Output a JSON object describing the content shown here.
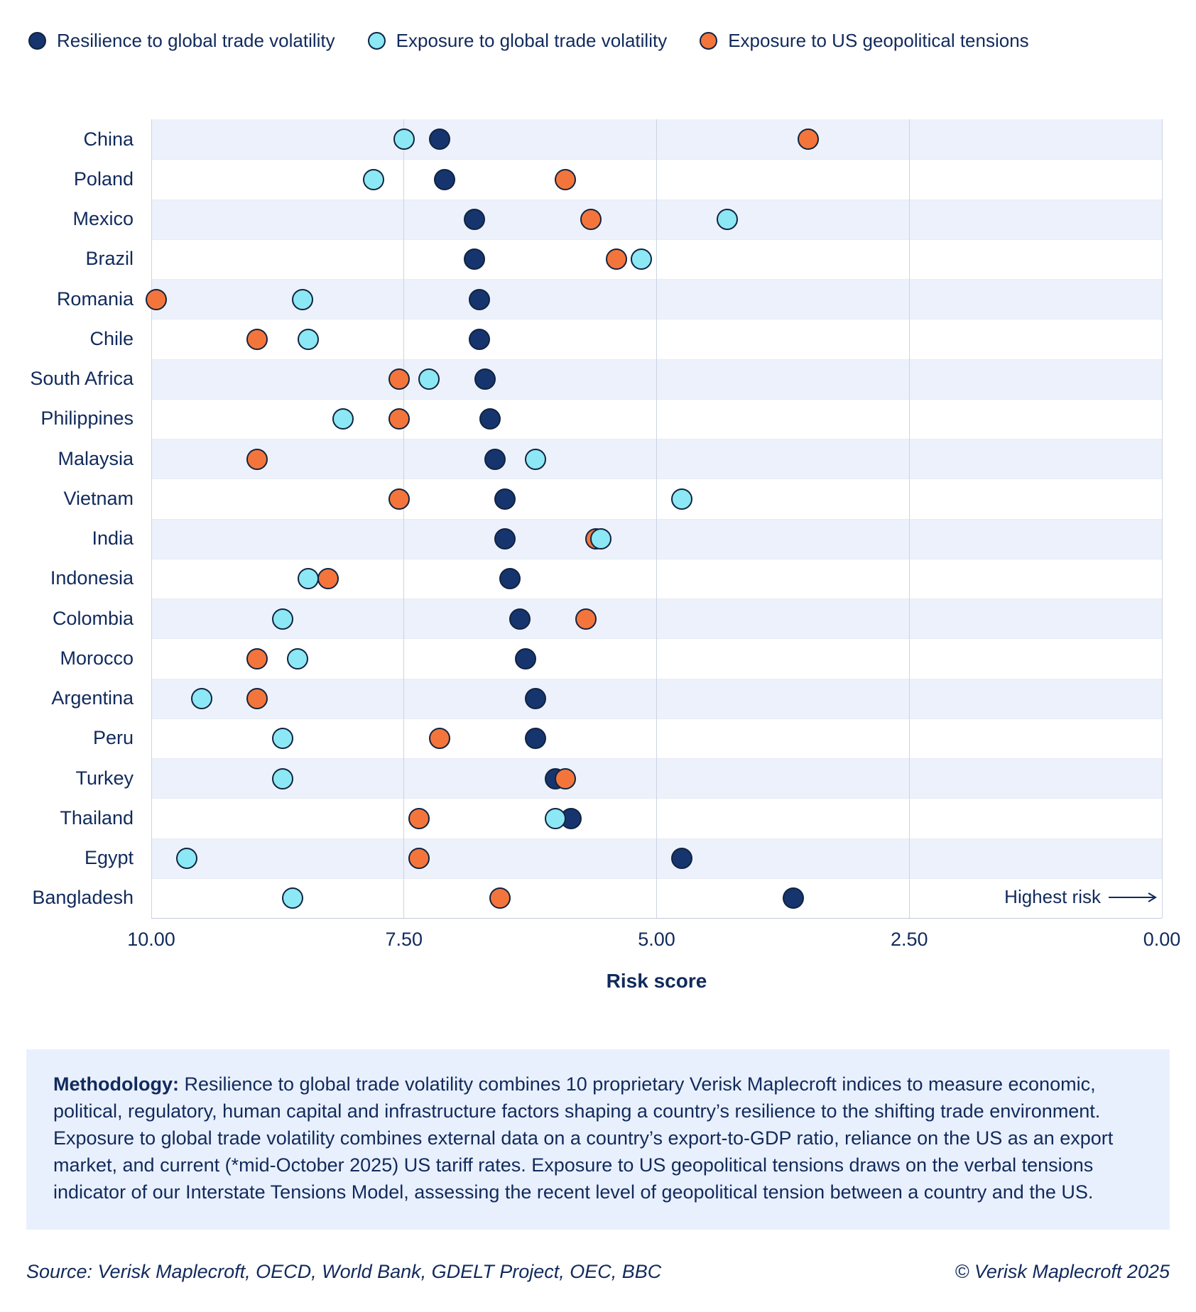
{
  "legend": [
    {
      "key": "resilience",
      "label": "Resilience to global trade volatility",
      "color": "#16356e"
    },
    {
      "key": "exposure_trade",
      "label": "Exposure to global trade volatility",
      "color": "#8ce8f4"
    },
    {
      "key": "exposure_us",
      "label": "Exposure to US geopolitical tensions",
      "color": "#f4753c"
    }
  ],
  "chart_data": {
    "type": "scatter",
    "subtype": "horizontal-dot-plot",
    "title": "",
    "xlabel": "Risk score",
    "x_axis_reversed": true,
    "x_range": [
      10.0,
      0.0
    ],
    "x_ticks": [
      "10.00",
      "7.50",
      "5.00",
      "2.50",
      "0.00"
    ],
    "grid": "vertical-only",
    "legend_position": "top-left",
    "annotation": "Highest risk",
    "series_names": [
      "Resilience to global trade volatility",
      "Exposure to global trade volatility",
      "Exposure to US geopolitical tensions"
    ],
    "rows": [
      {
        "country": "China",
        "resilience": 7.15,
        "exposure_trade": 7.5,
        "exposure_us": 3.5
      },
      {
        "country": "Poland",
        "resilience": 7.1,
        "exposure_trade": 7.8,
        "exposure_us": 5.9
      },
      {
        "country": "Mexico",
        "resilience": 6.8,
        "exposure_trade": 4.3,
        "exposure_us": 5.65
      },
      {
        "country": "Brazil",
        "resilience": 6.8,
        "exposure_trade": 5.15,
        "exposure_us": 5.4
      },
      {
        "country": "Romania",
        "resilience": 6.75,
        "exposure_trade": 8.5,
        "exposure_us": 9.95
      },
      {
        "country": "Chile",
        "resilience": 6.75,
        "exposure_trade": 8.45,
        "exposure_us": 8.95
      },
      {
        "country": "South Africa",
        "resilience": 6.7,
        "exposure_trade": 7.25,
        "exposure_us": 7.55
      },
      {
        "country": "Philippines",
        "resilience": 6.65,
        "exposure_trade": 8.1,
        "exposure_us": 7.55
      },
      {
        "country": "Malaysia",
        "resilience": 6.6,
        "exposure_trade": 6.2,
        "exposure_us": 8.95
      },
      {
        "country": "Vietnam",
        "resilience": 6.5,
        "exposure_trade": 4.75,
        "exposure_us": 7.55
      },
      {
        "country": "India",
        "resilience": 6.5,
        "exposure_trade": 5.55,
        "exposure_us": 5.6
      },
      {
        "country": "Indonesia",
        "resilience": 6.45,
        "exposure_trade": 8.45,
        "exposure_us": 8.25
      },
      {
        "country": "Colombia",
        "resilience": 6.35,
        "exposure_trade": 8.7,
        "exposure_us": 5.7
      },
      {
        "country": "Morocco",
        "resilience": 6.3,
        "exposure_trade": 8.55,
        "exposure_us": 8.95
      },
      {
        "country": "Argentina",
        "resilience": 6.2,
        "exposure_trade": 9.5,
        "exposure_us": 8.95
      },
      {
        "country": "Peru",
        "resilience": 6.2,
        "exposure_trade": 8.7,
        "exposure_us": 7.15
      },
      {
        "country": "Turkey",
        "resilience": 6.0,
        "exposure_trade": 8.7,
        "exposure_us": 5.9
      },
      {
        "country": "Thailand",
        "resilience": 5.85,
        "exposure_trade": 6.0,
        "exposure_us": 7.35
      },
      {
        "country": "Egypt",
        "resilience": 4.75,
        "exposure_trade": 9.65,
        "exposure_us": 7.35
      },
      {
        "country": "Bangladesh",
        "resilience": 3.65,
        "exposure_trade": 8.6,
        "exposure_us": 6.55
      }
    ]
  },
  "methodology": {
    "label": "Methodology:",
    "text": " Resilience to global trade volatility combines 10 proprietary Verisk Maplecroft indices to measure economic, political, regulatory, human capital and infrastructure factors shaping a country’s resilience to the shifting trade environment. Exposure to global trade volatility combines external data on a country’s export-to-GDP ratio, reliance on the US as an export market, and current (*mid-October 2025) US tariff rates. Exposure to US geopolitical tensions draws on the verbal tensions indicator of our Interstate Tensions Model, assessing the recent level of geopolitical tension between a country and the US."
  },
  "footer": {
    "source": "Source: Verisk Maplecroft, OECD, World Bank, GDELT Project, OEC, BBC",
    "copyright": "© Verisk Maplecroft 2025"
  },
  "colors": {
    "text_navy": "#112a5c",
    "row_band": "#ecf1fb",
    "gridline": "#ccd4e2",
    "methodology_bg": "#e9f0fd"
  }
}
